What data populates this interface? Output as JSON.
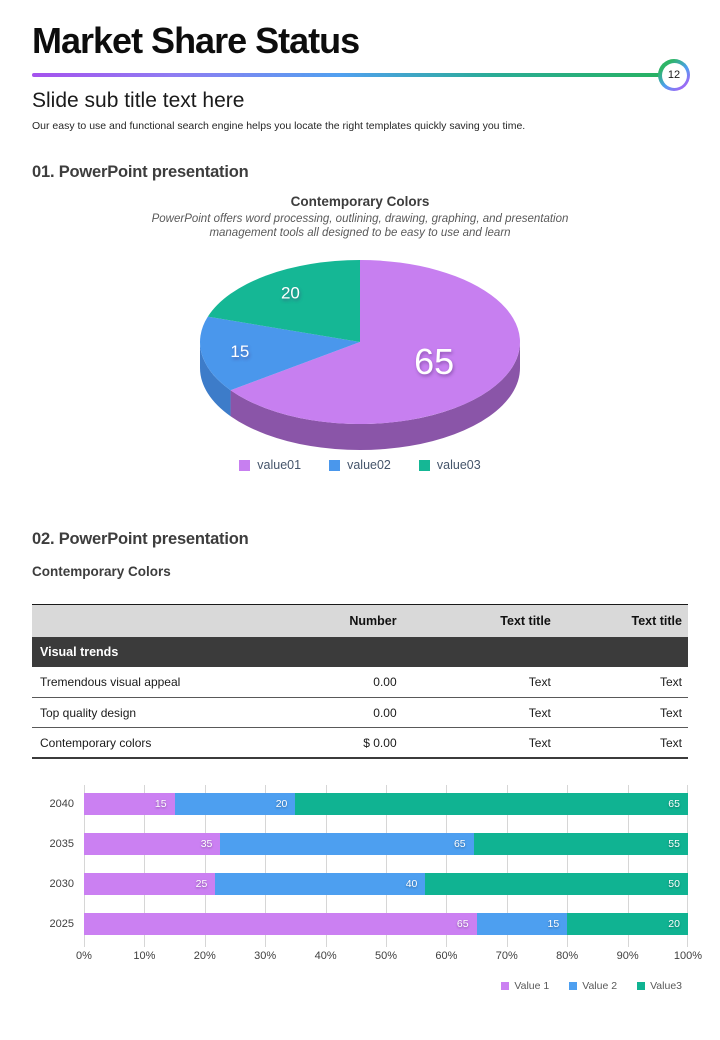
{
  "header": {
    "title": "Market Share Status",
    "page_number": "12",
    "subtitle": "Slide sub title text here",
    "description": "Our easy to use and functional search engine  helps you locate the right templates quickly saving you time."
  },
  "section1": {
    "heading": "01. PowerPoint presentation",
    "chart_title": "Contemporary Colors",
    "chart_subtitle": "PowerPoint offers word processing, outlining, drawing, graphing, and presentation management tools all designed to be easy to use and learn"
  },
  "section2": {
    "heading": "02. PowerPoint presentation",
    "subheading": "Contemporary Colors",
    "table": {
      "columns": [
        "",
        "Number",
        "Text title",
        "Text title"
      ],
      "section_row_label": "Visual trends",
      "rows": [
        [
          "Tremendous visual appeal",
          "0.00",
          "Text",
          "Text"
        ],
        [
          "Top quality design",
          "0.00",
          "Text",
          "Text"
        ],
        [
          "Contemporary colors",
          "$ 0.00",
          "Text",
          "Text"
        ]
      ]
    }
  },
  "chart_data": [
    {
      "type": "pie",
      "style": "3d",
      "title": "Contemporary Colors",
      "labels": [
        "value01",
        "value02",
        "value03"
      ],
      "values": [
        65,
        15,
        20
      ],
      "data_labels": [
        "65",
        "15",
        "20"
      ],
      "colors": [
        "#c77ff0",
        "#4a97ec",
        "#15b795"
      ],
      "side_colors": [
        "#8a55a8",
        "#3d7cc9",
        "#0e8d74"
      ],
      "legend_position": "bottom",
      "start_angle_deg": 0,
      "direction": "clockwise"
    },
    {
      "type": "bar",
      "variant": "stacked-horizontal-100pct",
      "categories": [
        "2040",
        "2035",
        "2030",
        "2025"
      ],
      "series": [
        {
          "name": "Value 1",
          "color": "#cb80f2",
          "values": [
            15,
            35,
            25,
            65
          ]
        },
        {
          "name": "Value 2",
          "color": "#4d9ff0",
          "values": [
            20,
            65,
            40,
            15
          ]
        },
        {
          "name": "Value3",
          "color": "#10b392",
          "values": [
            65,
            55,
            50,
            20
          ]
        }
      ],
      "x_ticks": [
        "0%",
        "10%",
        "20%",
        "30%",
        "40%",
        "50%",
        "60%",
        "70%",
        "80%",
        "90%",
        "100%"
      ],
      "xlim": [
        0,
        100
      ],
      "grid": true,
      "legend_position": "bottom-right"
    }
  ],
  "colors": {
    "divider_gradient": [
      "#a552ee",
      "#51a0f0",
      "#27b25f"
    ],
    "table_header_bg": "#d9d9d9",
    "table_section_bg": "#3b3b3b"
  }
}
